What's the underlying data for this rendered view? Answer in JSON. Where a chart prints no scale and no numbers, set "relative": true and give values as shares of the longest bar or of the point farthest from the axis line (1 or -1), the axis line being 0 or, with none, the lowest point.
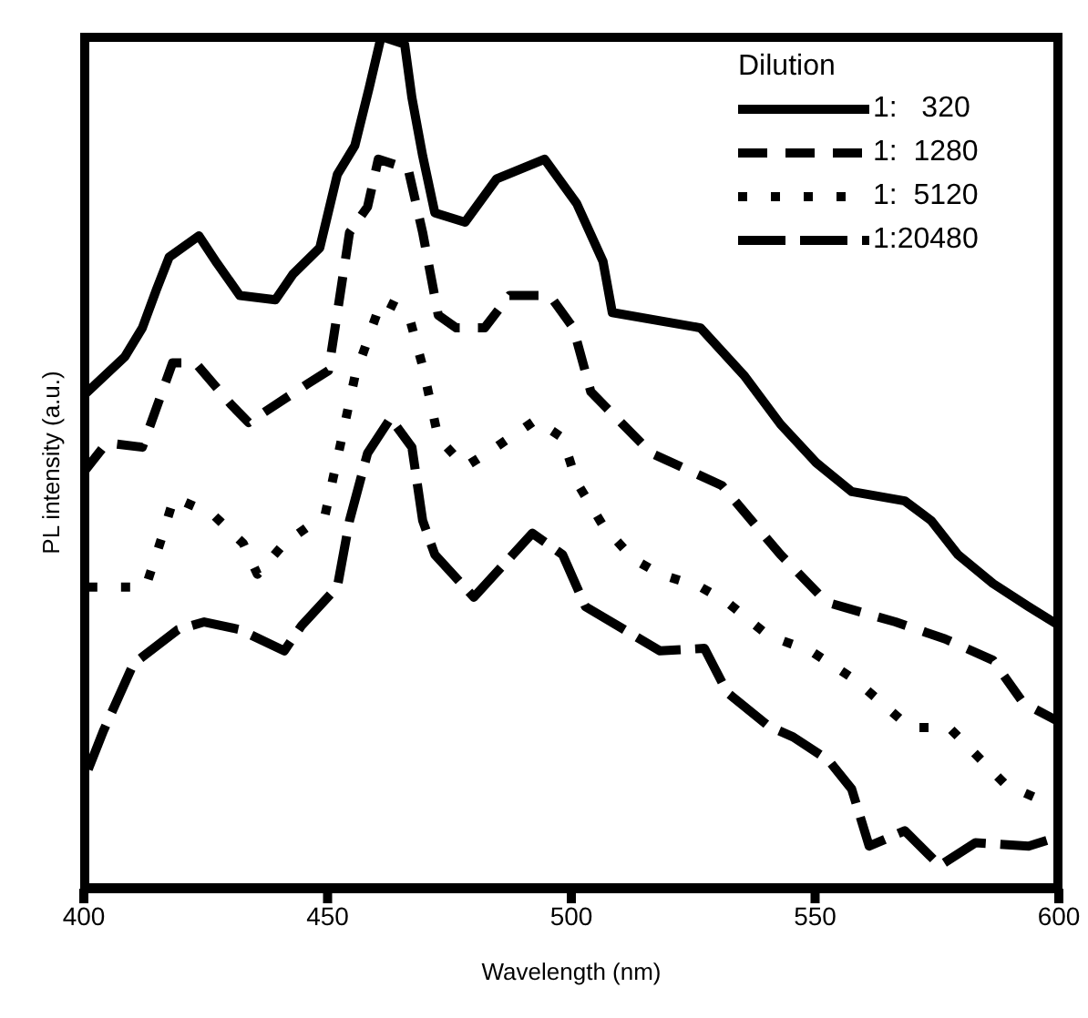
{
  "chart_data": {
    "type": "line",
    "relative": true,
    "xlabel": "Wavelength (nm)",
    "ylabel": "PL intensity (a.u.)",
    "legend_title": "Dilution",
    "legend": "top right",
    "xlim": [
      400,
      600
    ],
    "xticks": [
      400,
      450,
      500,
      550,
      600
    ],
    "grid": false,
    "marker": "none",
    "series": [
      {
        "name": "1:   320",
        "color": "#000000",
        "line_style": "solid",
        "x": [
          400,
          408.4,
          412,
          414.9,
          417.5,
          423.6,
          427.3,
          432,
          439.3,
          442.9,
          448.4,
          452,
          455.6,
          458.5,
          461,
          465.8,
          467.3,
          469.5,
          472,
          478.2,
          484.7,
          494.5,
          501.1,
          506.5,
          508.4,
          526.5,
          535.6,
          542.9,
          550.2,
          557.5,
          568.4,
          573.8,
          579.3,
          586.5,
          593.8,
          600
        ],
        "values": [
          0.579,
          0.624,
          0.658,
          0.703,
          0.741,
          0.766,
          0.734,
          0.696,
          0.691,
          0.721,
          0.752,
          0.838,
          0.872,
          0.939,
          1,
          0.991,
          0.928,
          0.86,
          0.793,
          0.782,
          0.833,
          0.856,
          0.804,
          0.736,
          0.676,
          0.658,
          0.601,
          0.545,
          0.5,
          0.466,
          0.455,
          0.432,
          0.392,
          0.358,
          0.331,
          0.309
        ]
      },
      {
        "name": "1:  1280",
        "color": "#000000",
        "line_style": "dashed",
        "x": [
          400,
          404.7,
          412,
          418.2,
          422.9,
          430.2,
          433.8,
          445.8,
          450.2,
          454.5,
          458.2,
          460.4,
          466.5,
          469.5,
          472.7,
          476.4,
          482.2,
          487.3,
          495.6,
          500.4,
          504,
          516.4,
          530.9,
          542.9,
          552.4,
          566.5,
          576.7,
          586.5,
          592.7,
          600
        ],
        "values": [
          0.489,
          0.523,
          0.518,
          0.617,
          0.617,
          0.568,
          0.547,
          0.592,
          0.608,
          0.77,
          0.8,
          0.856,
          0.845,
          0.77,
          0.673,
          0.658,
          0.658,
          0.696,
          0.696,
          0.658,
          0.583,
          0.511,
          0.473,
          0.392,
          0.336,
          0.313,
          0.293,
          0.268,
          0.218,
          0.196
        ]
      },
      {
        "name": "1:  5120",
        "color": "#000000",
        "line_style": "dotted",
        "x": [
          400.9,
          412.7,
          415.6,
          418.5,
          426.5,
          432.7,
          435.6,
          441.1,
          449.5,
          452.7,
          455.6,
          461.1,
          466.5,
          469.5,
          472.7,
          478.2,
          484,
          492.7,
          498.2,
          501.1,
          506.5,
          512.7,
          518.2,
          526.5,
          532,
          540.4,
          549.1,
          558.2,
          569.5,
          577.5,
          589.1,
          600
        ],
        "values": [
          0.354,
          0.354,
          0.405,
          0.459,
          0.439,
          0.405,
          0.369,
          0.405,
          0.439,
          0.523,
          0.601,
          0.691,
          0.676,
          0.613,
          0.529,
          0.495,
          0.516,
          0.55,
          0.529,
          0.477,
          0.426,
          0.387,
          0.369,
          0.354,
          0.336,
          0.297,
          0.279,
          0.245,
          0.189,
          0.189,
          0.122,
          0.095
        ]
      },
      {
        "name": "1:20480",
        "color": "#000000",
        "line_style": "longdash",
        "x": [
          400.9,
          404,
          410.2,
          419.3,
          424.7,
          432,
          441.1,
          444.7,
          452,
          454.5,
          458.2,
          462.9,
          467.3,
          469.5,
          472,
          480,
          492,
          498.2,
          502.9,
          518.2,
          527.3,
          532,
          540.4,
          545.5,
          552.7,
          557.5,
          561.1,
          568.4,
          575.6,
          582.9,
          593.8,
          600
        ],
        "values": [
          0.14,
          0.185,
          0.264,
          0.304,
          0.313,
          0.304,
          0.279,
          0.309,
          0.354,
          0.432,
          0.511,
          0.552,
          0.518,
          0.432,
          0.392,
          0.342,
          0.417,
          0.392,
          0.331,
          0.279,
          0.282,
          0.23,
          0.191,
          0.178,
          0.151,
          0.117,
          0.05,
          0.068,
          0.027,
          0.054,
          0.05,
          0.061
        ]
      }
    ]
  }
}
